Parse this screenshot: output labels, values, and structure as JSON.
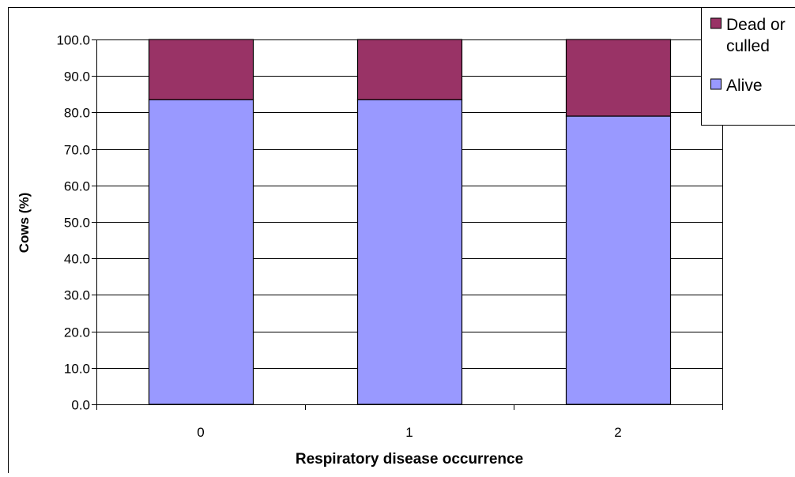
{
  "chart_data": {
    "type": "bar",
    "stacked": true,
    "categories": [
      "0",
      "1",
      "2"
    ],
    "series": [
      {
        "name": "Alive",
        "values": [
          83.5,
          83.5,
          79.0
        ],
        "color": "#9999ff"
      },
      {
        "name": "Dead or culled",
        "values": [
          16.5,
          16.5,
          21.0
        ],
        "color": "#993366"
      }
    ],
    "title": "",
    "xlabel": "Respiratory disease occurrence",
    "ylabel": "Cows (%)",
    "ylim": [
      0,
      100
    ],
    "yticks": [
      "0.0",
      "10.0",
      "20.0",
      "30.0",
      "40.0",
      "50.0",
      "60.0",
      "70.0",
      "80.0",
      "90.0",
      "100.0"
    ],
    "grid": true,
    "legend": {
      "position": "top-right",
      "entries": [
        {
          "label_lines": [
            "Dead or",
            "culled"
          ],
          "color": "#993366"
        },
        {
          "label_lines": [
            "Alive"
          ],
          "color": "#9999ff"
        }
      ]
    }
  }
}
